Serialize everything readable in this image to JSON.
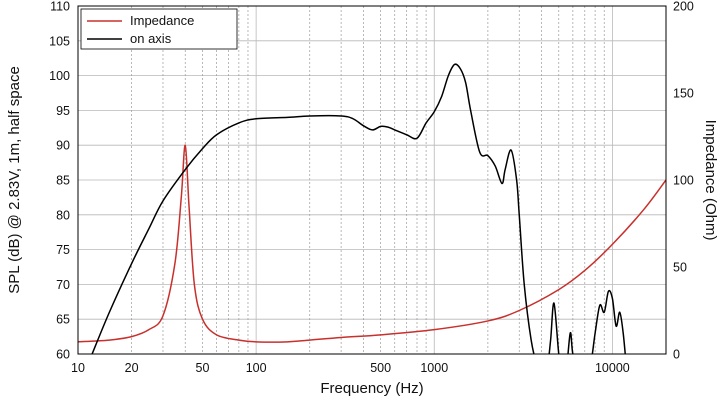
{
  "chart_data": {
    "type": "line",
    "xlabel": "Frequency (Hz)",
    "ylabel_left": "SPL (dB) @ 2.83V, 1m, half space",
    "ylabel_right": "Impedance (Ohm)",
    "x_scale": "log",
    "xlim": [
      10,
      20000
    ],
    "ylim_left": [
      60,
      110
    ],
    "ylim_right": [
      0,
      200
    ],
    "x_tick_labels": [
      "10",
      "20",
      "50",
      "100",
      "500",
      "1000",
      "10000"
    ],
    "x_tick_values": [
      10,
      20,
      50,
      100,
      500,
      1000,
      10000
    ],
    "y_left_ticks": [
      60,
      65,
      70,
      75,
      80,
      85,
      90,
      95,
      100,
      105,
      110
    ],
    "y_right_ticks": [
      0,
      50,
      100,
      150,
      200
    ],
    "grid": true,
    "legend_position": "top-left",
    "series": [
      {
        "name": "Impedance",
        "axis": "right",
        "color": "#c8302c",
        "x": [
          10,
          15,
          20,
          25,
          30,
          35,
          38,
          40,
          42,
          45,
          50,
          60,
          80,
          100,
          150,
          200,
          300,
          500,
          1000,
          2000,
          3000,
          5000,
          7000,
          10000,
          15000,
          20000
        ],
        "y": [
          7,
          8,
          10,
          14,
          22,
          52,
          90,
          120,
          85,
          40,
          20,
          11,
          8,
          7,
          7,
          8,
          9.5,
          11,
          14,
          19,
          25,
          37,
          48,
          63,
          83,
          100
        ]
      },
      {
        "name": "on axis",
        "axis": "left",
        "color": "#000000",
        "x": [
          12,
          15,
          20,
          25,
          30,
          40,
          50,
          60,
          80,
          100,
          150,
          200,
          300,
          350,
          400,
          450,
          500,
          550,
          600,
          700,
          800,
          900,
          1000,
          1100,
          1200,
          1300,
          1400,
          1500,
          1600,
          1800,
          2000,
          2200,
          2400,
          2500,
          2700,
          2900,
          3000,
          3200,
          3500,
          3800,
          4000,
          4300,
          4500,
          4700,
          5000,
          5300,
          5500,
          5800,
          6000,
          6500,
          7000,
          7500,
          8000,
          8500,
          9000,
          9500,
          10000,
          10500,
          11000,
          11500,
          12000
        ],
        "y": [
          60,
          66,
          73,
          78,
          82,
          86.5,
          89.5,
          91.5,
          93.2,
          93.8,
          94,
          94.2,
          94.2,
          93.8,
          92.8,
          92.2,
          92.7,
          92.6,
          92.2,
          91.5,
          91,
          93.2,
          94.8,
          97,
          100,
          101.6,
          101,
          99,
          95,
          89,
          88.5,
          87,
          84.5,
          86.5,
          89.3,
          85,
          80,
          70,
          62,
          58,
          57,
          58,
          62,
          67.3,
          60,
          55,
          57,
          63,
          60,
          57,
          57,
          58,
          63,
          67,
          66,
          69,
          68,
          64,
          66,
          63,
          58
        ]
      }
    ]
  }
}
